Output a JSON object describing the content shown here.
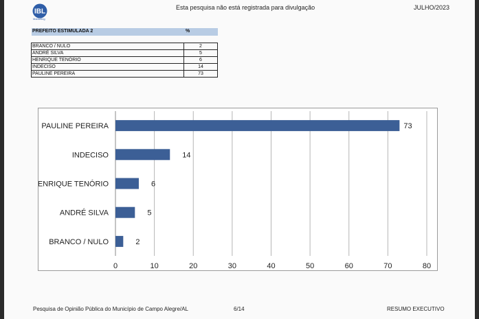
{
  "header": {
    "logo_text": "IBL",
    "logo_subtext": "Marketing",
    "notice": "Esta pesquisa não está registrada para divulgação",
    "date": "JULHO/2023"
  },
  "table": {
    "title": "PREFEITO ESTIMULADA 2",
    "percent_header": "%",
    "rows": [
      {
        "label": "BRANCO / NULO",
        "value": "2"
      },
      {
        "label": "ANDRÉ SILVA",
        "value": "5"
      },
      {
        "label": "HENRIQUE TENÓRIO",
        "value": "6"
      },
      {
        "label": "INDECISO",
        "value": "14"
      },
      {
        "label": "PAULINE PEREIRA",
        "value": "73"
      }
    ]
  },
  "chart_data": {
    "type": "bar",
    "orientation": "horizontal",
    "categories": [
      "PAULINE PEREIRA",
      "INDECISO",
      "HENRIQUE TENÓRIO",
      "ANDRÉ SILVA",
      "BRANCO / NULO"
    ],
    "values": [
      73,
      14,
      6,
      5,
      2
    ],
    "xlim": [
      0,
      80
    ],
    "xticks": [
      0,
      10,
      20,
      30,
      40,
      50,
      60,
      70,
      80
    ],
    "grid": true,
    "bar_color": "#3c5f96"
  },
  "footer": {
    "left": "Pesquisa de Opinião Pública do Município de Campo Alegre/AL",
    "center": "6/14",
    "right": "RESUMO EXECUTIVO"
  }
}
